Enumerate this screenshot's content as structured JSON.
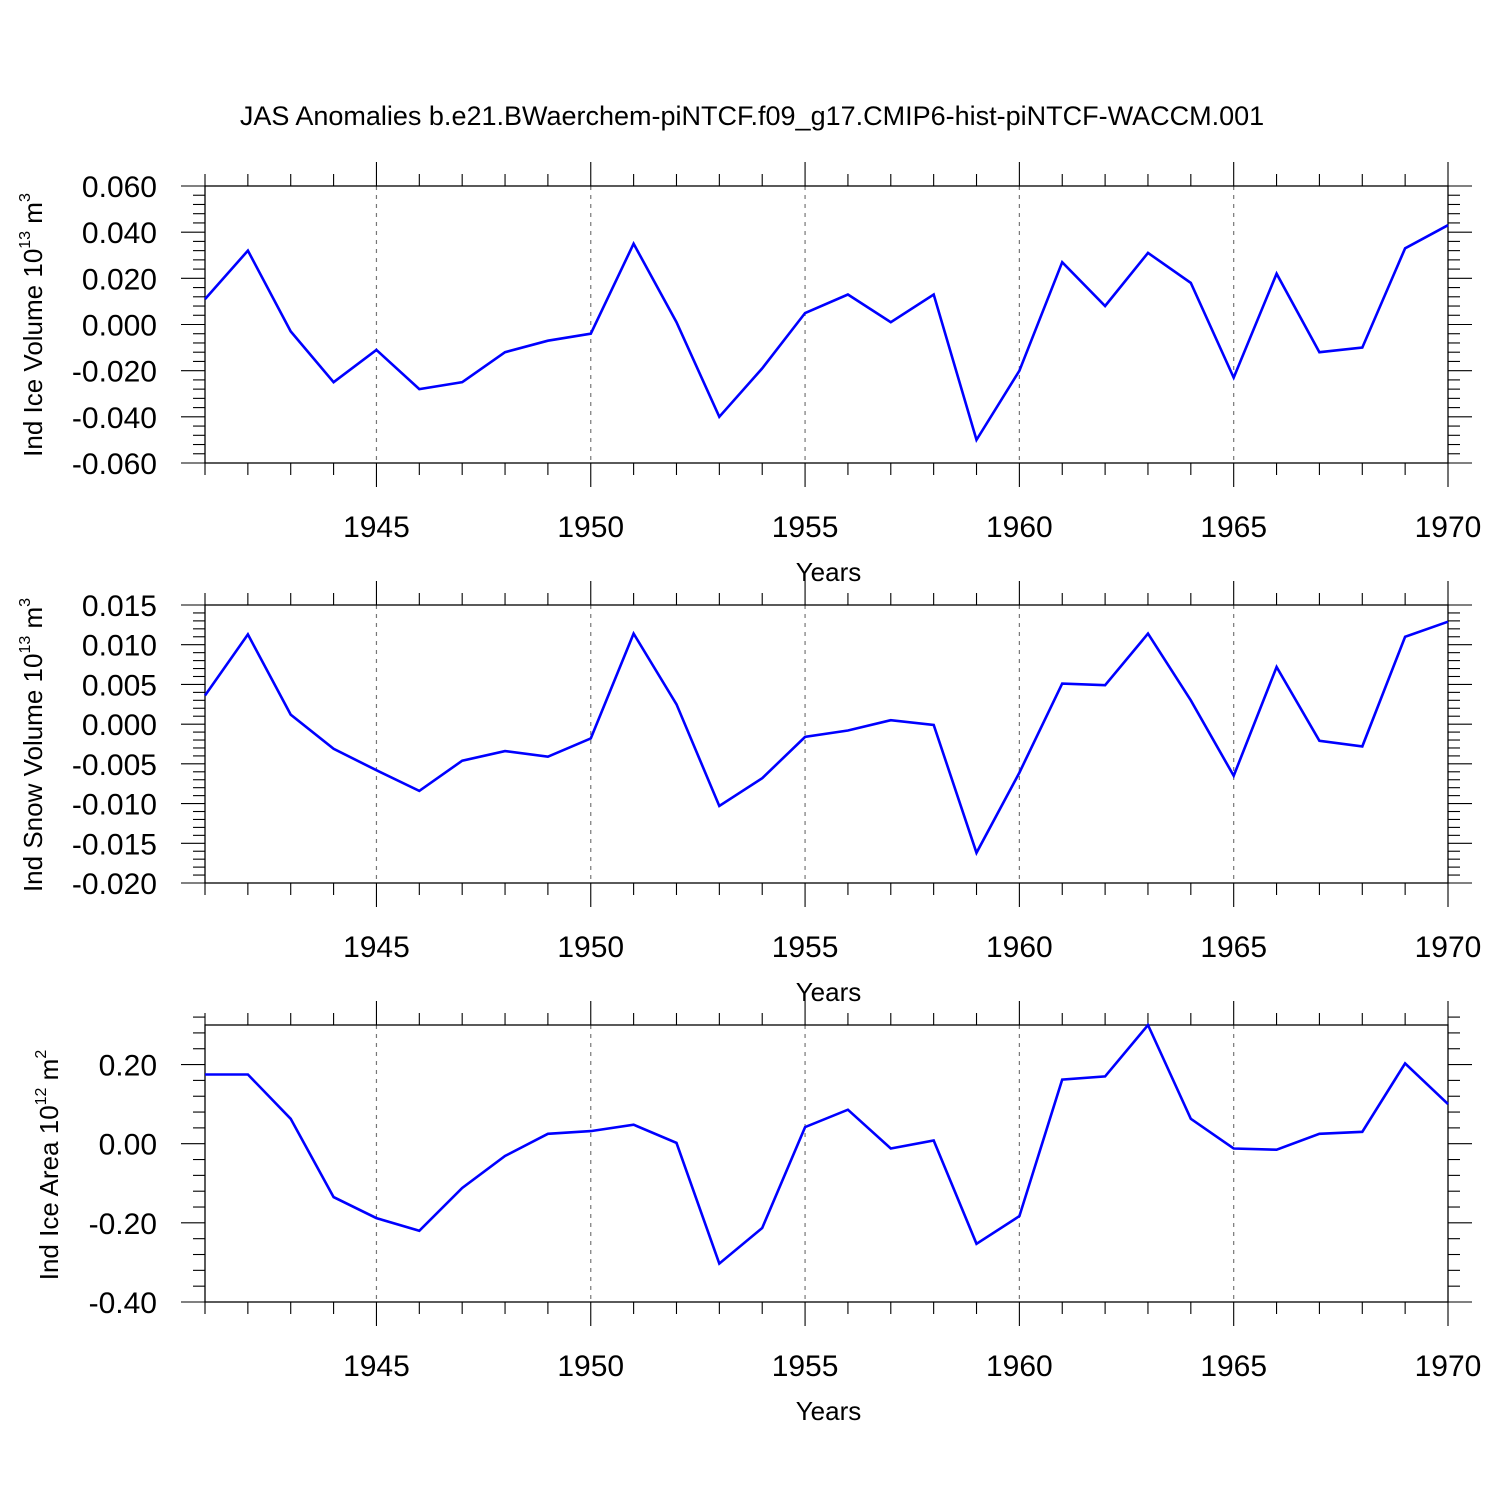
{
  "figure_title": "JAS Anomalies b.e21.BWaerchem-piNTCF.f09_g17.CMIP6-hist-piNTCF-WACCM.001",
  "line_color": "#0000ff",
  "chart_data": [
    {
      "type": "line",
      "xlabel": "Years",
      "ylabel": {
        "base": "Ind Ice Volume 10",
        "exp": "13",
        "unit": " m",
        "unit_exp": "3"
      },
      "xlim": [
        1941,
        1970
      ],
      "ylim": [
        -0.06,
        0.06
      ],
      "xticks": [
        "1945",
        "1950",
        "1955",
        "1960",
        "1965",
        "1970"
      ],
      "yticks": [
        "0.060",
        "0.040",
        "0.020",
        "0.000",
        "-0.020",
        "-0.040",
        "-0.060"
      ],
      "ytick_values": [
        0.06,
        0.04,
        0.02,
        0.0,
        -0.02,
        -0.04,
        -0.06
      ],
      "x": [
        1941,
        1942,
        1943,
        1944,
        1945,
        1946,
        1947,
        1948,
        1949,
        1950,
        1951,
        1952,
        1953,
        1954,
        1955,
        1956,
        1957,
        1958,
        1959,
        1960,
        1961,
        1962,
        1963,
        1964,
        1965,
        1966,
        1967,
        1968,
        1969,
        1970
      ],
      "values": [
        0.011,
        0.032,
        -0.003,
        -0.025,
        -0.011,
        -0.028,
        -0.025,
        -0.012,
        -0.007,
        -0.004,
        0.035,
        0.001,
        -0.04,
        -0.019,
        0.005,
        0.013,
        0.001,
        0.013,
        -0.05,
        -0.02,
        0.027,
        0.008,
        0.031,
        0.018,
        -0.023,
        0.022,
        -0.012,
        -0.01,
        0.033,
        0.043
      ]
    },
    {
      "type": "line",
      "xlabel": "Years",
      "ylabel": {
        "base": "Ind Snow Volume 10",
        "exp": "13",
        "unit": " m",
        "unit_exp": "3"
      },
      "xlim": [
        1941,
        1970
      ],
      "ylim": [
        -0.02,
        0.015
      ],
      "xticks": [
        "1945",
        "1950",
        "1955",
        "1960",
        "1965",
        "1970"
      ],
      "yticks": [
        "0.015",
        "0.010",
        "0.005",
        "0.000",
        "-0.005",
        "-0.010",
        "-0.015",
        "-0.020"
      ],
      "ytick_values": [
        0.015,
        0.01,
        0.005,
        0.0,
        -0.005,
        -0.01,
        -0.015,
        -0.02
      ],
      "x": [
        1941,
        1942,
        1943,
        1944,
        1945,
        1946,
        1947,
        1948,
        1949,
        1950,
        1951,
        1952,
        1953,
        1954,
        1955,
        1956,
        1957,
        1958,
        1959,
        1960,
        1961,
        1962,
        1963,
        1964,
        1965,
        1966,
        1967,
        1968,
        1969,
        1970
      ],
      "values": [
        0.0036,
        0.0113,
        0.0012,
        -0.0031,
        -0.0058,
        -0.0084,
        -0.0046,
        -0.0034,
        -0.0041,
        -0.0018,
        0.0114,
        0.0025,
        -0.0103,
        -0.0068,
        -0.0016,
        -0.0008,
        0.0005,
        -0.0001,
        -0.0162,
        -0.0061,
        0.0051,
        0.0049,
        0.0114,
        0.003,
        -0.0065,
        0.0072,
        -0.0021,
        -0.0028,
        0.011,
        0.0129
      ]
    },
    {
      "type": "line",
      "xlabel": "Years",
      "ylabel": {
        "base": "Ind Ice Area 10",
        "exp": "12",
        "unit": " m",
        "unit_exp": "2"
      },
      "xlim": [
        1941,
        1970
      ],
      "ylim": [
        -0.4,
        0.3
      ],
      "xticks": [
        "1945",
        "1950",
        "1955",
        "1960",
        "1965",
        "1970"
      ],
      "yticks": [
        "0.20",
        "0.00",
        "-0.20",
        "-0.40"
      ],
      "ytick_values": [
        0.2,
        0.0,
        -0.2,
        -0.4
      ],
      "x": [
        1941,
        1942,
        1943,
        1944,
        1945,
        1946,
        1947,
        1948,
        1949,
        1950,
        1951,
        1952,
        1953,
        1954,
        1955,
        1956,
        1957,
        1958,
        1959,
        1960,
        1961,
        1962,
        1963,
        1964,
        1965,
        1966,
        1967,
        1968,
        1969,
        1970
      ],
      "values": [
        0.175,
        0.175,
        0.063,
        -0.135,
        -0.188,
        -0.22,
        -0.112,
        -0.031,
        0.025,
        0.032,
        0.048,
        0.002,
        -0.303,
        -0.213,
        0.042,
        0.086,
        -0.012,
        0.008,
        -0.253,
        -0.183,
        0.162,
        0.17,
        0.3,
        0.063,
        -0.012,
        -0.015,
        0.025,
        0.03,
        0.203,
        0.1
      ]
    }
  ]
}
